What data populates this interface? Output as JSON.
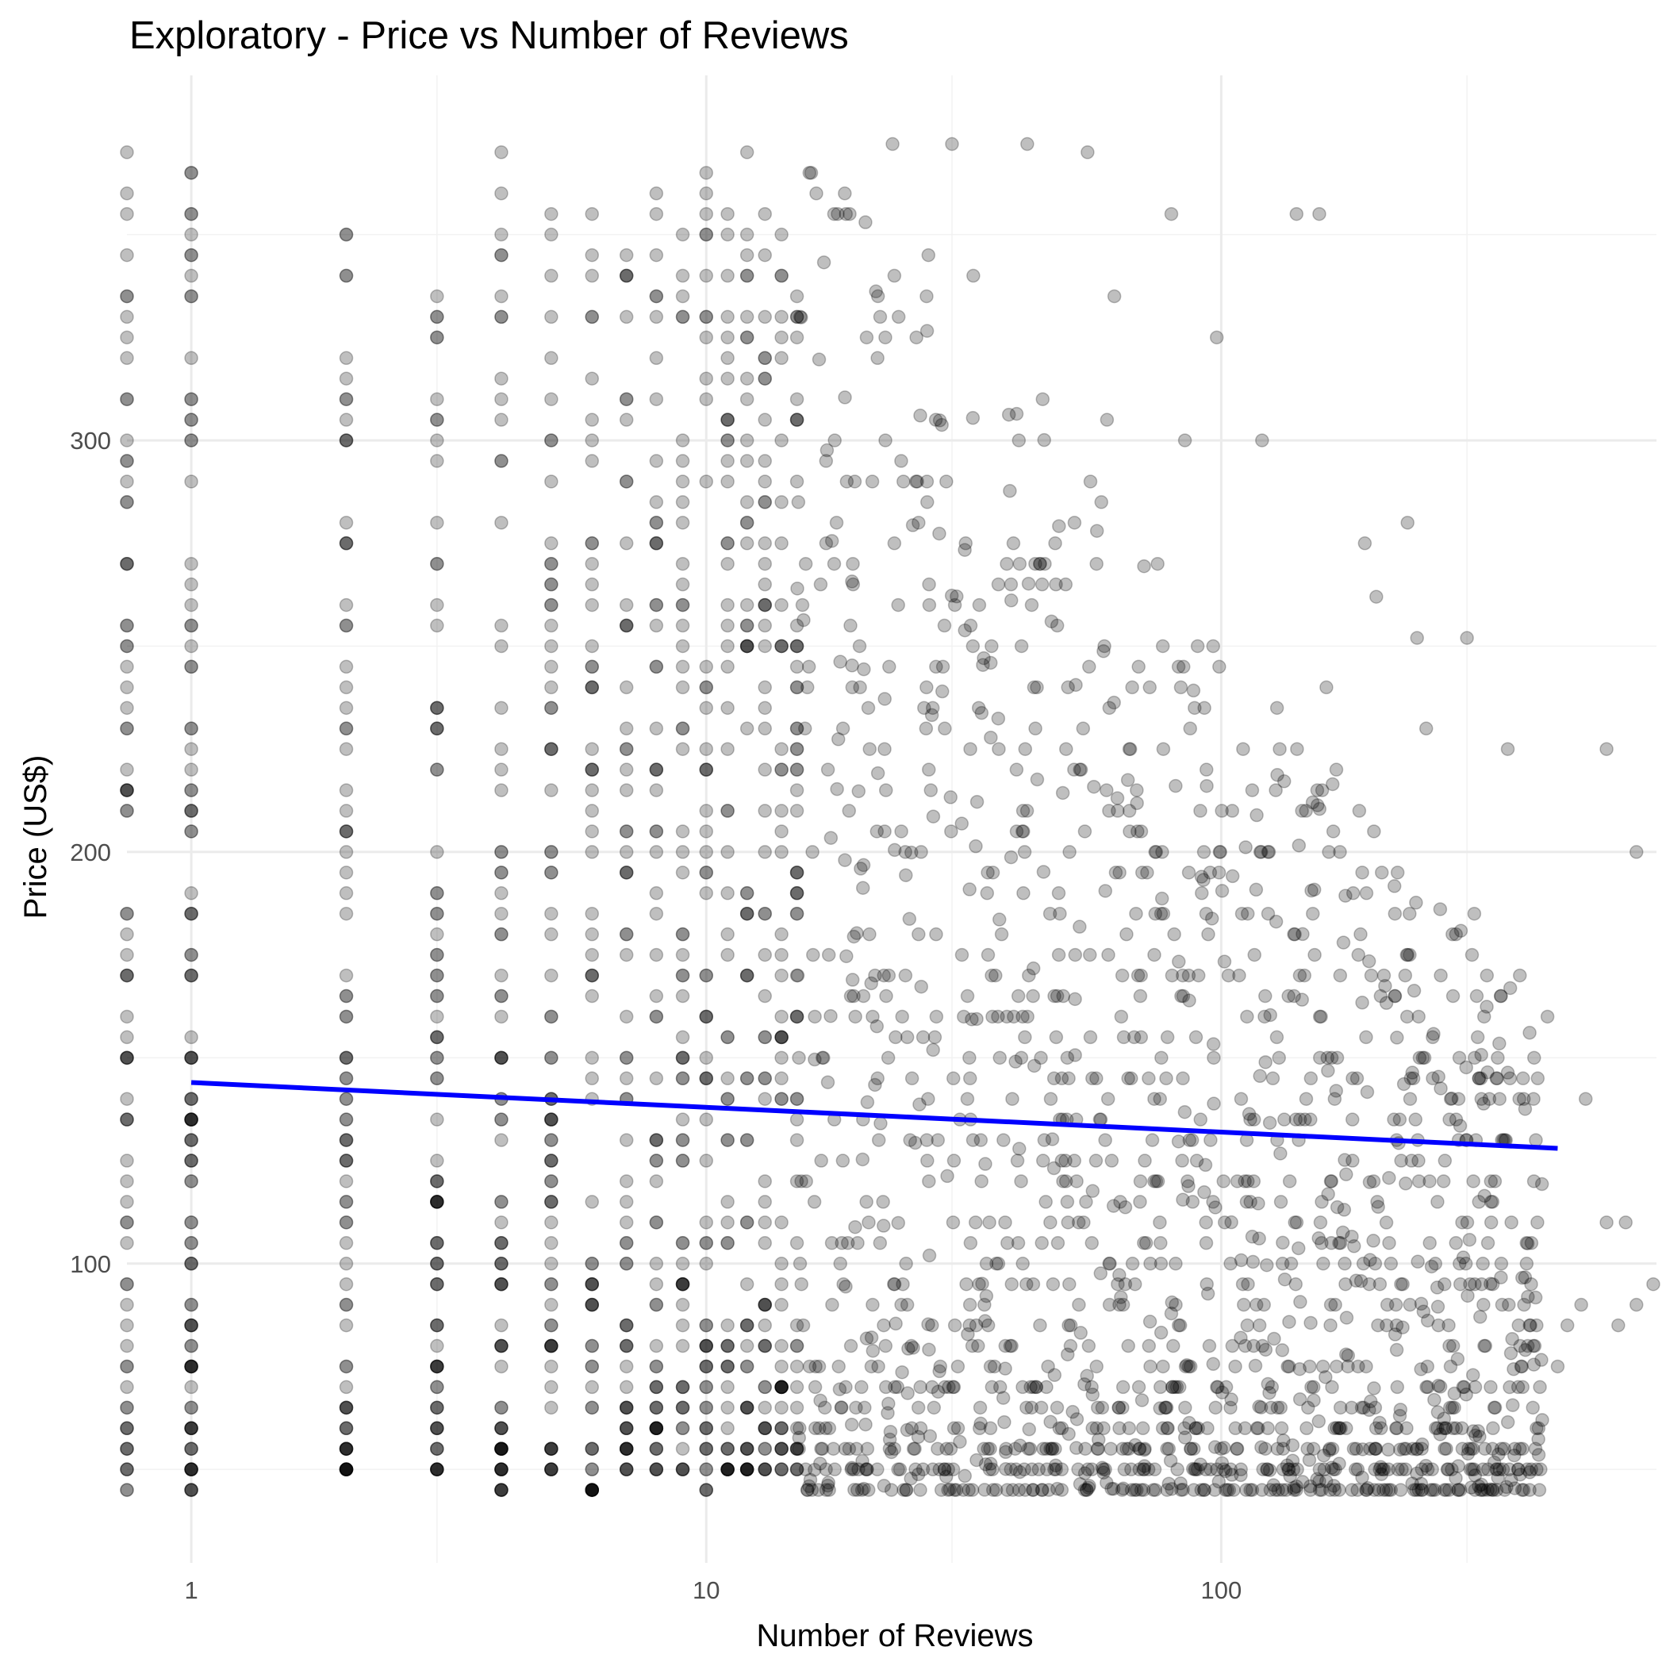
{
  "chart_data": {
    "type": "scatter",
    "title": "Exploratory - Price vs Number of Reviews",
    "xlabel": "Number of Reviews",
    "ylabel": "Price (US$)",
    "x_scale": "log10",
    "x_range": [
      0.75,
      700
    ],
    "y_range": [
      35,
      380
    ],
    "x_ticks": [
      {
        "value": 1,
        "label": "1"
      },
      {
        "value": 10,
        "label": "10"
      },
      {
        "value": 100,
        "label": "100"
      }
    ],
    "y_ticks": [
      {
        "value": 100,
        "label": "100"
      },
      {
        "value": 200,
        "label": "200"
      },
      {
        "value": 300,
        "label": "300"
      }
    ],
    "grid": true,
    "point_color": "#000000",
    "point_alpha": 0.25,
    "trend_color": "#0000ff",
    "trend_line": {
      "x": [
        1,
        450
      ],
      "y": [
        144,
        128
      ]
    },
    "columns": [
      {
        "x": 1,
        "min": 45,
        "max": 370,
        "n": 110
      },
      {
        "x": 2,
        "min": 48,
        "max": 355,
        "n": 90
      },
      {
        "x": 3,
        "min": 48,
        "max": 350,
        "n": 90
      },
      {
        "x": 4,
        "min": 46,
        "max": 372,
        "n": 85
      },
      {
        "x": 5,
        "min": 48,
        "max": 365,
        "n": 80
      },
      {
        "x": 6,
        "min": 45,
        "max": 355,
        "n": 70
      },
      {
        "x": 7,
        "min": 48,
        "max": 350,
        "n": 70
      },
      {
        "x": 8,
        "min": 48,
        "max": 372,
        "n": 70
      },
      {
        "x": 9,
        "min": 50,
        "max": 365,
        "n": 65
      },
      {
        "x": 10,
        "min": 45,
        "max": 372,
        "n": 65
      },
      {
        "x": 11,
        "min": 48,
        "max": 360,
        "n": 60
      },
      {
        "x": 12,
        "min": 48,
        "max": 372,
        "n": 60
      },
      {
        "x": 13,
        "min": 48,
        "max": 365,
        "n": 60
      },
      {
        "x": 14,
        "min": 48,
        "max": 355,
        "n": 55
      },
      {
        "x": 15,
        "min": 48,
        "max": 340,
        "n": 55
      }
    ],
    "scatter_points": [
      {
        "x": 18,
        "y": 355
      },
      {
        "x": 23,
        "y": 372
      },
      {
        "x": 30,
        "y": 372
      },
      {
        "x": 42,
        "y": 372
      },
      {
        "x": 55,
        "y": 370
      },
      {
        "x": 27,
        "y": 345
      },
      {
        "x": 33,
        "y": 340
      },
      {
        "x": 62,
        "y": 335
      },
      {
        "x": 98,
        "y": 325
      },
      {
        "x": 80,
        "y": 355
      },
      {
        "x": 140,
        "y": 355
      },
      {
        "x": 155,
        "y": 355
      },
      {
        "x": 45,
        "y": 310
      },
      {
        "x": 60,
        "y": 305
      },
      {
        "x": 85,
        "y": 300
      },
      {
        "x": 120,
        "y": 300
      },
      {
        "x": 230,
        "y": 280
      },
      {
        "x": 190,
        "y": 275
      },
      {
        "x": 200,
        "y": 262
      },
      {
        "x": 300,
        "y": 252
      },
      {
        "x": 240,
        "y": 252
      },
      {
        "x": 160,
        "y": 240
      },
      {
        "x": 250,
        "y": 230
      },
      {
        "x": 360,
        "y": 225
      },
      {
        "x": 560,
        "y": 225
      },
      {
        "x": 640,
        "y": 200
      },
      {
        "x": 170,
        "y": 200
      },
      {
        "x": 220,
        "y": 195
      },
      {
        "x": 310,
        "y": 185
      },
      {
        "x": 380,
        "y": 170
      },
      {
        "x": 430,
        "y": 160
      },
      {
        "x": 290,
        "y": 150
      },
      {
        "x": 320,
        "y": 140
      },
      {
        "x": 510,
        "y": 140
      },
      {
        "x": 340,
        "y": 120
      },
      {
        "x": 560,
        "y": 110
      },
      {
        "x": 610,
        "y": 110
      },
      {
        "x": 690,
        "y": 95
      },
      {
        "x": 640,
        "y": 90
      },
      {
        "x": 590,
        "y": 85
      },
      {
        "x": 500,
        "y": 90
      },
      {
        "x": 470,
        "y": 85
      },
      {
        "x": 450,
        "y": 75
      },
      {
        "x": 420,
        "y": 62
      },
      {
        "x": 380,
        "y": 55
      },
      {
        "x": 400,
        "y": 50
      }
    ]
  }
}
